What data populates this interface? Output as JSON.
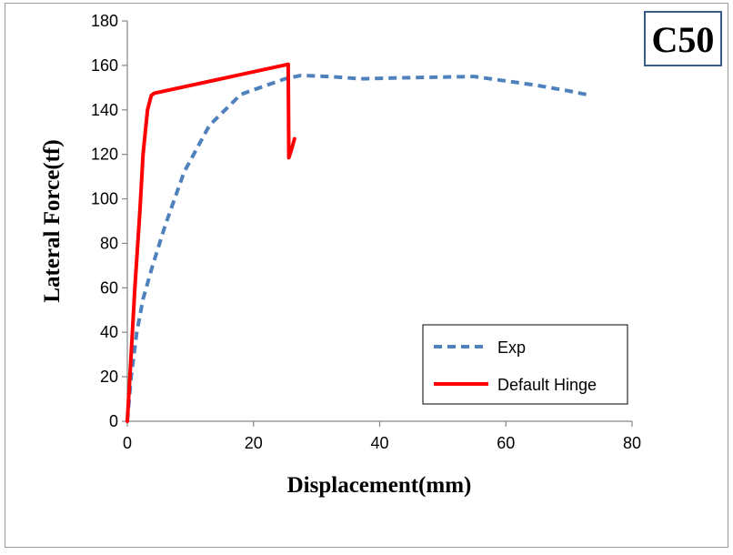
{
  "chart_data": {
    "type": "line",
    "title": "",
    "tag": "C50",
    "xlabel": "Displacement(mm)",
    "ylabel": "Lateral Force(tf)",
    "xlim": [
      0,
      80
    ],
    "ylim": [
      0,
      180
    ],
    "xticks": [
      0,
      20,
      40,
      60,
      80
    ],
    "yticks": [
      0,
      20,
      40,
      60,
      80,
      100,
      120,
      140,
      160,
      180
    ],
    "grid": false,
    "legend_position": "bottom-right",
    "series": [
      {
        "name": "Exp",
        "style": "dashed",
        "color": "#4f81bd",
        "x": [
          0,
          0.6,
          1.5,
          2.5,
          4,
          6,
          9,
          13,
          18,
          22,
          25,
          27.5,
          32,
          37,
          45,
          55,
          60,
          65,
          70,
          73.5
        ],
        "y": [
          0,
          20,
          40,
          55,
          70,
          88,
          112,
          133,
          147,
          151,
          154,
          155.5,
          155,
          154,
          154.5,
          155,
          153,
          151,
          148.5,
          146.5
        ]
      },
      {
        "name": "Default Hinge",
        "style": "solid",
        "color": "#ff0000",
        "x": [
          0,
          0.6,
          1.2,
          2,
          2.5,
          3.2,
          3.8,
          4.3,
          25.5,
          25.6,
          26,
          26.5
        ],
        "y": [
          0,
          30,
          60,
          95,
          120,
          140,
          146.5,
          147.5,
          160.5,
          118.5,
          122,
          127
        ]
      }
    ]
  }
}
